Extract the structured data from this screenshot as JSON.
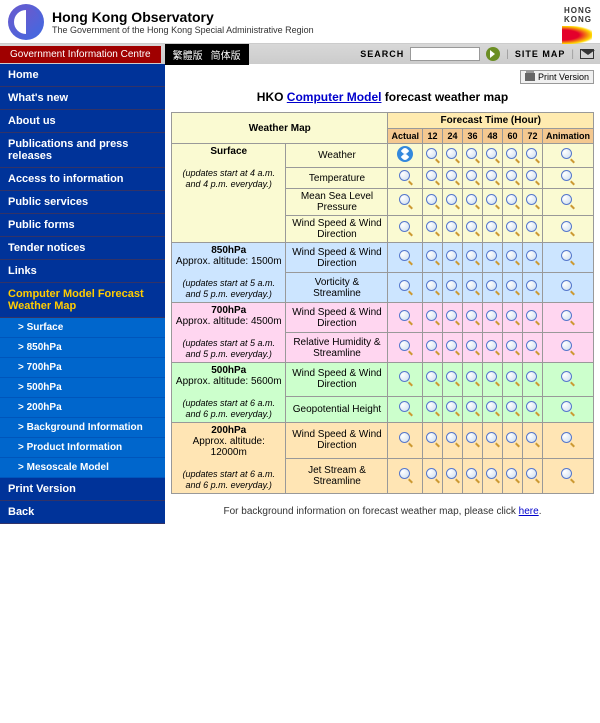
{
  "header": {
    "title": "Hong Kong Observatory",
    "subtitle": "The Government of the Hong Kong Special Administrative Region",
    "brand_top": "HONG",
    "brand_bottom": "KONG"
  },
  "topbar": {
    "gov_info": "Government Information Centre",
    "lang1": "繁體版",
    "lang2": "简体版",
    "search_label": "SEARCH",
    "sitemap": "SITE MAP"
  },
  "nav": {
    "items": [
      {
        "label": "Home"
      },
      {
        "label": "What's new"
      },
      {
        "label": "About us"
      },
      {
        "label": "Publications and press releases"
      },
      {
        "label": "Access to information"
      },
      {
        "label": "Public services"
      },
      {
        "label": "Public forms"
      },
      {
        "label": "Tender notices"
      },
      {
        "label": "Links"
      }
    ],
    "active": "Computer Model Forecast Weather Map",
    "subs": [
      {
        "label": "> Surface"
      },
      {
        "label": "> 850hPa"
      },
      {
        "label": "> 700hPa"
      },
      {
        "label": "> 500hPa"
      },
      {
        "label": "> 200hPa"
      },
      {
        "label": "> Background Information"
      },
      {
        "label": "> Product Information"
      },
      {
        "label": "> Mesoscale Model"
      }
    ],
    "print": "Print Version",
    "back": "Back"
  },
  "content": {
    "print_btn": "Print Version",
    "title_prefix": "HKO ",
    "title_link": "Computer Model",
    "title_suffix": " forecast weather map",
    "col_map": "Weather Map",
    "col_time": "Forecast Time (Hour)",
    "hours": [
      "Actual",
      "12",
      "24",
      "36",
      "48",
      "60",
      "72",
      "Animation"
    ],
    "levels": [
      {
        "bg": "bg-surface",
        "name": "Surface",
        "alt": "",
        "upd": "(updates start at 4 a.m. and 4 p.m. everyday.)",
        "params": [
          "Weather",
          "Temperature",
          "Mean Sea Level Pressure",
          "Wind Speed & Wind Direction"
        ],
        "first_icon": true
      },
      {
        "bg": "bg-850",
        "name": "850hPa",
        "alt": "Approx. altitude: 1500m",
        "upd": "(updates start at 5 a.m. and 5 p.m. everyday.)",
        "params": [
          "Wind Speed & Wind Direction",
          "Vorticity & Streamline"
        ]
      },
      {
        "bg": "bg-700",
        "name": "700hPa",
        "alt": "Approx. altitude: 4500m",
        "upd": "(updates start at 5 a.m. and 5 p.m. everyday.)",
        "params": [
          "Wind Speed & Wind Direction",
          "Relative Humidity & Streamline"
        ]
      },
      {
        "bg": "bg-500",
        "name": "500hPa",
        "alt": "Approx. altitude: 5600m",
        "upd": "(updates start at 6 a.m. and 6 p.m. everyday.)",
        "params": [
          "Wind Speed & Wind Direction",
          "Geopotential Height"
        ]
      },
      {
        "bg": "bg-200",
        "name": "200hPa",
        "alt": "Approx. altitude: 12000m",
        "upd": "(updates start at 6 a.m. and 6 p.m. everyday.)",
        "params": [
          "Wind Speed & Wind Direction",
          "Jet Stream & Streamline"
        ]
      }
    ],
    "footer_text": "For background information on forecast weather map, please click ",
    "footer_link": "here"
  },
  "colors": {
    "sidebar": "#003399",
    "sidebar_sub": "#0066cc",
    "active": "#ffcc00",
    "surface": "#fafad2",
    "850": "#cce5ff",
    "700": "#ffd6f0",
    "500": "#ccffcc",
    "200": "#ffe5b4",
    "time_header": "#ffebb0",
    "hours_header": "#f4c890"
  }
}
